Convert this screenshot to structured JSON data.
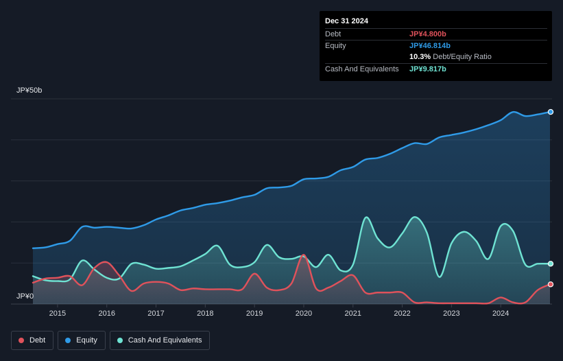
{
  "chart_data": {
    "type": "area",
    "y_top_label": "JP¥50b",
    "y_bottom_label": "JP¥0",
    "ylim": [
      0,
      50
    ],
    "xlim": [
      2014.5,
      2025.0
    ],
    "x_ticks": [
      2015,
      2016,
      2017,
      2018,
      2019,
      2020,
      2021,
      2022,
      2023,
      2024
    ],
    "x_tick_labels": [
      "2015",
      "2016",
      "2017",
      "2018",
      "2019",
      "2020",
      "2021",
      "2022",
      "2023",
      "2024"
    ],
    "gridlines": [
      10,
      20,
      30,
      40,
      50
    ],
    "series": [
      {
        "name": "Equity",
        "color": "#2f9be8",
        "x": [
          2014.5,
          2014.75,
          2015.0,
          2015.25,
          2015.5,
          2015.75,
          2016.0,
          2016.25,
          2016.5,
          2016.75,
          2017.0,
          2017.25,
          2017.5,
          2017.75,
          2018.0,
          2018.25,
          2018.5,
          2018.75,
          2019.0,
          2019.25,
          2019.5,
          2019.75,
          2020.0,
          2020.25,
          2020.5,
          2020.75,
          2021.0,
          2021.25,
          2021.5,
          2021.75,
          2022.0,
          2022.25,
          2022.5,
          2022.75,
          2023.0,
          2023.25,
          2023.5,
          2023.75,
          2024.0,
          2024.25,
          2024.5,
          2024.75,
          2025.0
        ],
        "values": [
          13.6,
          13.8,
          14.6,
          15.4,
          18.8,
          18.6,
          18.8,
          18.6,
          18.4,
          19.2,
          20.6,
          21.6,
          22.8,
          23.4,
          24.2,
          24.6,
          25.2,
          26.0,
          26.6,
          28.2,
          28.4,
          28.8,
          30.4,
          30.6,
          31.0,
          32.6,
          33.4,
          35.2,
          35.6,
          36.6,
          38.0,
          39.2,
          39.0,
          40.6,
          41.2,
          41.8,
          42.6,
          43.6,
          44.8,
          46.8,
          45.8,
          46.2,
          46.814
        ]
      },
      {
        "name": "Cash And Equivalents",
        "color": "#6fe3d3",
        "x": [
          2014.5,
          2014.75,
          2015.0,
          2015.25,
          2015.5,
          2015.75,
          2016.0,
          2016.25,
          2016.5,
          2016.75,
          2017.0,
          2017.25,
          2017.5,
          2017.75,
          2018.0,
          2018.25,
          2018.5,
          2018.75,
          2019.0,
          2019.25,
          2019.5,
          2019.75,
          2020.0,
          2020.25,
          2020.5,
          2020.75,
          2021.0,
          2021.25,
          2021.5,
          2021.75,
          2022.0,
          2022.25,
          2022.5,
          2022.75,
          2023.0,
          2023.25,
          2023.5,
          2023.75,
          2024.0,
          2024.25,
          2024.5,
          2024.75,
          2025.0
        ],
        "values": [
          6.8,
          5.8,
          5.6,
          6.0,
          10.6,
          8.4,
          6.4,
          6.2,
          9.8,
          9.6,
          8.6,
          8.8,
          9.2,
          10.6,
          12.2,
          14.2,
          9.6,
          9.0,
          10.2,
          14.4,
          11.4,
          11.0,
          11.6,
          9.0,
          12.0,
          8.2,
          9.6,
          21.0,
          16.0,
          13.8,
          17.2,
          21.2,
          17.4,
          6.6,
          14.8,
          17.6,
          15.4,
          11.0,
          19.0,
          17.8,
          9.6,
          9.817,
          9.817
        ]
      },
      {
        "name": "Debt",
        "color": "#e0525b",
        "x": [
          2014.5,
          2014.75,
          2015.0,
          2015.25,
          2015.5,
          2015.75,
          2016.0,
          2016.25,
          2016.5,
          2016.75,
          2017.0,
          2017.25,
          2017.5,
          2017.75,
          2018.0,
          2018.25,
          2018.5,
          2018.75,
          2019.0,
          2019.25,
          2019.5,
          2019.75,
          2020.0,
          2020.25,
          2020.5,
          2020.75,
          2021.0,
          2021.25,
          2021.5,
          2021.75,
          2022.0,
          2022.25,
          2022.5,
          2022.75,
          2023.0,
          2023.25,
          2023.5,
          2023.75,
          2024.0,
          2024.25,
          2024.5,
          2024.75,
          2025.0
        ],
        "values": [
          5.2,
          6.2,
          6.4,
          6.8,
          4.6,
          8.8,
          10.2,
          7.0,
          3.2,
          5.0,
          5.4,
          5.0,
          3.4,
          3.8,
          3.6,
          3.6,
          3.6,
          3.6,
          7.4,
          4.0,
          3.4,
          5.0,
          12.0,
          3.8,
          4.0,
          5.6,
          7.0,
          2.8,
          2.8,
          2.8,
          2.8,
          0.4,
          0.4,
          0.2,
          0.2,
          0.2,
          0.2,
          0.2,
          1.6,
          0.4,
          0.4,
          3.4,
          4.8
        ]
      }
    ]
  },
  "tooltip": {
    "date": "Dec 31 2024",
    "debt_label": "Debt",
    "debt_value": "JP¥4.800b",
    "equity_label": "Equity",
    "equity_value": "JP¥46.814b",
    "ratio_value": "10.3%",
    "ratio_label": "Debt/Equity Ratio",
    "cash_label": "Cash And Equivalents",
    "cash_value": "JP¥9.817b"
  },
  "legend": [
    {
      "label": "Debt",
      "color": "#e0525b"
    },
    {
      "label": "Equity",
      "color": "#2f9be8"
    },
    {
      "label": "Cash And Equivalents",
      "color": "#6fe3d3"
    }
  ]
}
